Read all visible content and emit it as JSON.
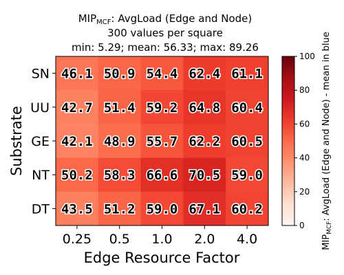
{
  "chart_data": {
    "type": "heatmap",
    "title_prefix": "MIP",
    "title_subscript": "MCF",
    "title_suffix": ": AvgLoad (Edge and Node)",
    "title_line2": "300 values per square",
    "title_line3": "min: 5.29; mean: 56.33; max: 89.26",
    "xlabel": "Edge Resource Factor",
    "ylabel": "Substrate",
    "x_categories": [
      "0.25",
      "0.5",
      "1.0",
      "2.0",
      "4.0"
    ],
    "y_categories": [
      "SN",
      "UU",
      "GE",
      "NT",
      "DT"
    ],
    "values": [
      [
        46.1,
        50.9,
        54.4,
        62.4,
        61.1
      ],
      [
        42.7,
        51.4,
        59.2,
        64.8,
        60.4
      ],
      [
        42.1,
        48.9,
        55.7,
        62.2,
        60.5
      ],
      [
        50.2,
        58.3,
        66.6,
        70.5,
        59.0
      ],
      [
        43.5,
        51.2,
        59.0,
        67.1,
        60.2
      ]
    ],
    "value_labels": [
      [
        "46.1",
        "50.9",
        "54.4",
        "62.4",
        "61.1"
      ],
      [
        "42.7",
        "51.4",
        "59.2",
        "64.8",
        "60.4"
      ],
      [
        "42.1",
        "48.9",
        "55.7",
        "62.2",
        "60.5"
      ],
      [
        "50.2",
        "58.3",
        "66.6",
        "70.5",
        "59.0"
      ],
      [
        "43.5",
        "51.2",
        "59.0",
        "67.1",
        "60.2"
      ]
    ],
    "colorbar": {
      "label_prefix": "MIP",
      "label_subscript": "MCF",
      "label_suffix": ": AvgLoad (Edge and Node) - mean in blue",
      "range": [
        0,
        100
      ],
      "ticks": [
        "0",
        "20",
        "40",
        "60",
        "80",
        "100"
      ],
      "colormap": "Reds"
    },
    "grid": false
  }
}
